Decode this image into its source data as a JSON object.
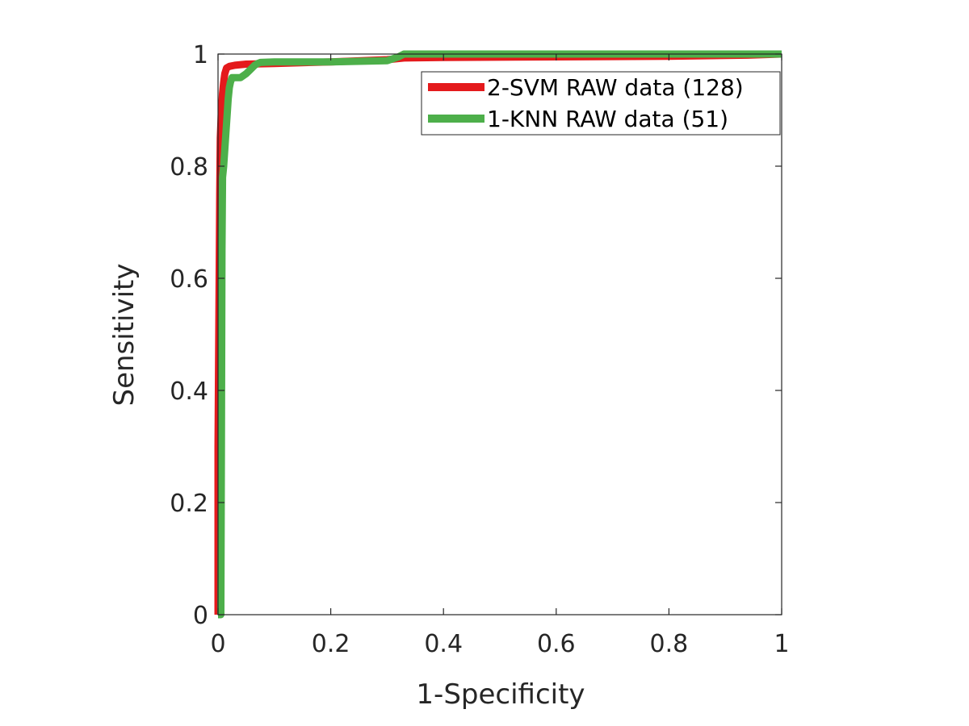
{
  "chart_data": {
    "type": "line",
    "title": "",
    "xlabel": "1-Specificity",
    "ylabel": "Sensitivity",
    "xlim": [
      0,
      1
    ],
    "ylim": [
      0,
      1
    ],
    "xticks": [
      0,
      0.2,
      0.4,
      0.6,
      0.8,
      1
    ],
    "yticks": [
      0,
      0.2,
      0.4,
      0.6,
      0.8,
      1
    ],
    "xtick_labels": [
      "0",
      "0.2",
      "0.4",
      "0.6",
      "0.8",
      "1"
    ],
    "ytick_labels": [
      "0",
      "0.2",
      "0.4",
      "0.6",
      "0.8",
      "1"
    ],
    "grid": false,
    "legend_position": "top-right",
    "series": [
      {
        "name": "2-SVM RAW data (128)",
        "color": "#e41a1c",
        "x": [
          0,
          0,
          0.002,
          0.003,
          0.004,
          0.006,
          0.008,
          0.01,
          0.012,
          0.015,
          0.02,
          0.03,
          0.05,
          0.1,
          0.2,
          0.3,
          0.33,
          0.4,
          0.6,
          0.8,
          0.94,
          1
        ],
        "y": [
          0,
          0.3,
          0.6,
          0.75,
          0.85,
          0.9,
          0.93,
          0.95,
          0.965,
          0.975,
          0.978,
          0.98,
          0.982,
          0.983,
          0.986,
          0.99,
          0.993,
          0.994,
          0.995,
          0.996,
          0.998,
          1
        ]
      },
      {
        "name": "1-KNN RAW data (51)",
        "color": "#4daf4a",
        "x": [
          0,
          0.005,
          0.006,
          0.007,
          0.008,
          0.01,
          0.012,
          0.014,
          0.016,
          0.018,
          0.02,
          0.022,
          0.025,
          0.04,
          0.05,
          0.055,
          0.06,
          0.065,
          0.07,
          0.075,
          0.1,
          0.2,
          0.3,
          0.32,
          0.33,
          0.4,
          0.6,
          0.8,
          0.94,
          1
        ],
        "y": [
          0,
          0,
          0.3,
          0.65,
          0.78,
          0.8,
          0.83,
          0.86,
          0.89,
          0.92,
          0.94,
          0.95,
          0.958,
          0.958,
          0.965,
          0.97,
          0.975,
          0.98,
          0.983,
          0.985,
          0.986,
          0.986,
          0.988,
          0.995,
          1,
          1,
          1,
          1,
          1,
          1
        ]
      }
    ]
  }
}
